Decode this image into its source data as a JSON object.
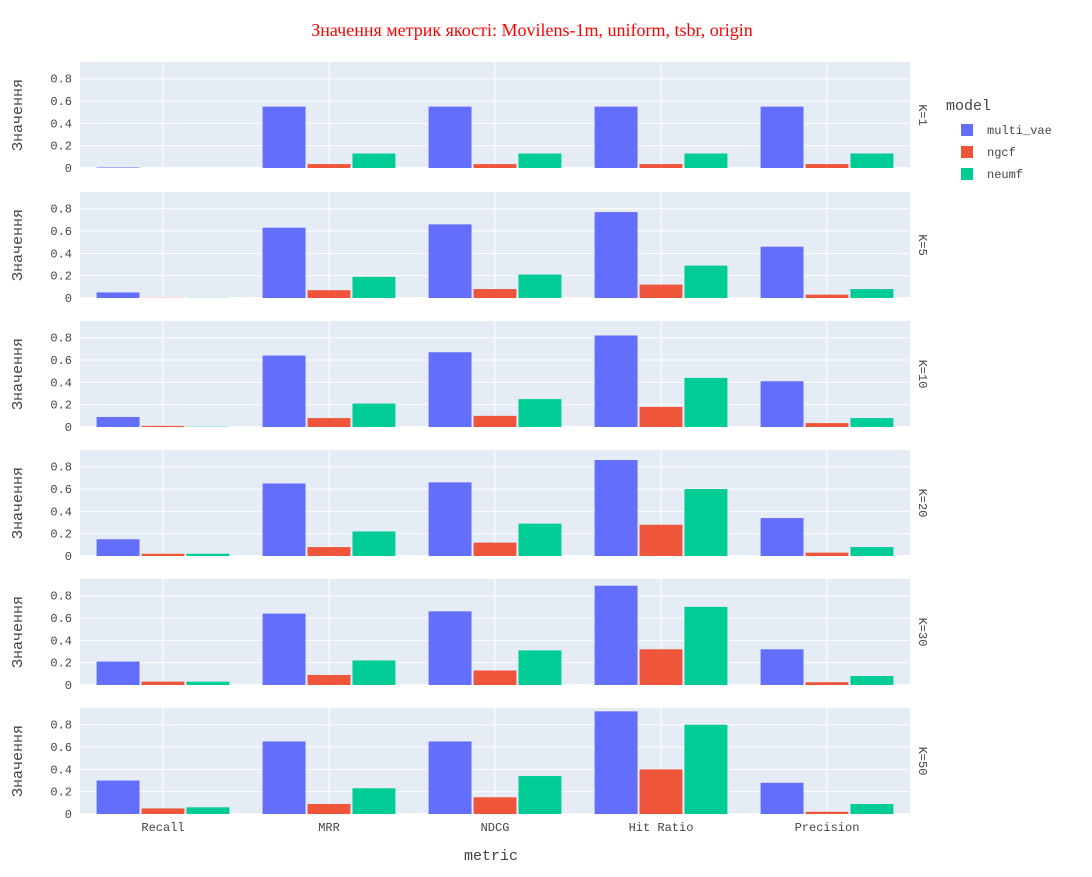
{
  "chart_data": {
    "type": "bar",
    "title": "Значення метрик якості: Movilens-1m, uniform, tsbr, origin",
    "xlabel": "metric",
    "ylabel": "Значення",
    "ylim": [
      0,
      0.95
    ],
    "yticks": [
      "0",
      "0.2",
      "0.4",
      "0.6",
      "0.8"
    ],
    "grid": true,
    "legend_title": "model",
    "legend_position": "top-right",
    "categories": [
      "Recall",
      "MRR",
      "NDCG",
      "Hit Ratio",
      "Precision"
    ],
    "colors": {
      "multi_vae": "#636efa",
      "ngcf": "#ef553b",
      "neumf": "#00cc96"
    },
    "title_color": "#ff0000",
    "plot_bg": "#e5ecf6",
    "facets": [
      {
        "label": "K=1",
        "series": [
          {
            "name": "multi_vae",
            "values": [
              0.005,
              0.55,
              0.55,
              0.55,
              0.55
            ]
          },
          {
            "name": "ngcf",
            "values": [
              0.0,
              0.035,
              0.035,
              0.035,
              0.035
            ]
          },
          {
            "name": "neumf",
            "values": [
              0.0,
              0.13,
              0.13,
              0.13,
              0.13
            ]
          }
        ]
      },
      {
        "label": "K=5",
        "series": [
          {
            "name": "multi_vae",
            "values": [
              0.05,
              0.63,
              0.66,
              0.77,
              0.46
            ]
          },
          {
            "name": "ngcf",
            "values": [
              0.002,
              0.07,
              0.08,
              0.12,
              0.03
            ]
          },
          {
            "name": "neumf",
            "values": [
              0.002,
              0.19,
              0.21,
              0.29,
              0.08
            ]
          }
        ]
      },
      {
        "label": "K=10",
        "series": [
          {
            "name": "multi_vae",
            "values": [
              0.09,
              0.64,
              0.67,
              0.82,
              0.41
            ]
          },
          {
            "name": "ngcf",
            "values": [
              0.01,
              0.08,
              0.1,
              0.18,
              0.035
            ]
          },
          {
            "name": "neumf",
            "values": [
              0.003,
              0.21,
              0.25,
              0.44,
              0.08
            ]
          }
        ]
      },
      {
        "label": "K=20",
        "series": [
          {
            "name": "multi_vae",
            "values": [
              0.15,
              0.65,
              0.66,
              0.86,
              0.34
            ]
          },
          {
            "name": "ngcf",
            "values": [
              0.02,
              0.08,
              0.12,
              0.28,
              0.03
            ]
          },
          {
            "name": "neumf",
            "values": [
              0.02,
              0.22,
              0.29,
              0.6,
              0.08
            ]
          }
        ]
      },
      {
        "label": "K=30",
        "series": [
          {
            "name": "multi_vae",
            "values": [
              0.21,
              0.64,
              0.66,
              0.89,
              0.32
            ]
          },
          {
            "name": "ngcf",
            "values": [
              0.03,
              0.09,
              0.13,
              0.32,
              0.025
            ]
          },
          {
            "name": "neumf",
            "values": [
              0.03,
              0.22,
              0.31,
              0.7,
              0.08
            ]
          }
        ]
      },
      {
        "label": "K=50",
        "series": [
          {
            "name": "multi_vae",
            "values": [
              0.3,
              0.65,
              0.65,
              0.92,
              0.28
            ]
          },
          {
            "name": "ngcf",
            "values": [
              0.05,
              0.09,
              0.15,
              0.4,
              0.02
            ]
          },
          {
            "name": "neumf",
            "values": [
              0.06,
              0.23,
              0.34,
              0.8,
              0.09
            ]
          }
        ]
      }
    ]
  }
}
